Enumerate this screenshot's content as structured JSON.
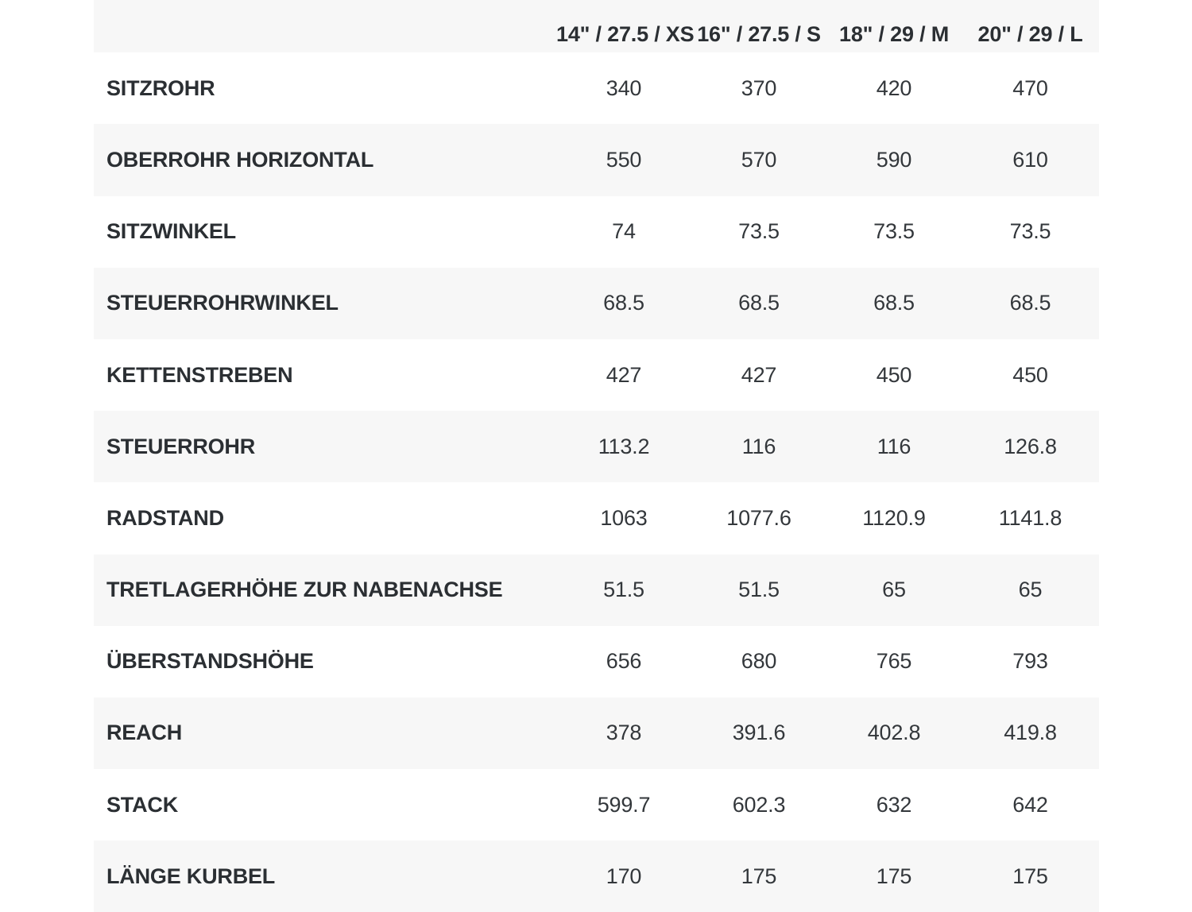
{
  "header": {
    "blank": "",
    "sizes": [
      "14\" / 27.5 / XS",
      "16\" / 27.5 / S",
      "18\" / 29 / M",
      "20\" / 29 / L"
    ]
  },
  "rows": [
    {
      "label": "SITZROHR",
      "values": [
        "340",
        "370",
        "420",
        "470"
      ]
    },
    {
      "label": "OBERROHR HORIZONTAL",
      "values": [
        "550",
        "570",
        "590",
        "610"
      ]
    },
    {
      "label": "SITZWINKEL",
      "values": [
        "74",
        "73.5",
        "73.5",
        "73.5"
      ]
    },
    {
      "label": "STEUERROHRWINKEL",
      "values": [
        "68.5",
        "68.5",
        "68.5",
        "68.5"
      ]
    },
    {
      "label": "KETTENSTREBEN",
      "values": [
        "427",
        "427",
        "450",
        "450"
      ]
    },
    {
      "label": "STEUERROHR",
      "values": [
        "113.2",
        "116",
        "116",
        "126.8"
      ]
    },
    {
      "label": "RADSTAND",
      "values": [
        "1063",
        "1077.6",
        "1120.9",
        "1141.8"
      ]
    },
    {
      "label": "TRETLAGERHÖHE ZUR NABENACHSE",
      "values": [
        "51.5",
        "51.5",
        "65",
        "65"
      ]
    },
    {
      "label": "ÜBERSTANDSHÖHE",
      "values": [
        "656",
        "680",
        "765",
        "793"
      ]
    },
    {
      "label": "REACH",
      "values": [
        "378",
        "391.6",
        "402.8",
        "419.8"
      ]
    },
    {
      "label": "STACK",
      "values": [
        "599.7",
        "602.3",
        "632",
        "642"
      ]
    },
    {
      "label": "LÄNGE KURBEL",
      "values": [
        "170",
        "175",
        "175",
        "175"
      ]
    }
  ]
}
